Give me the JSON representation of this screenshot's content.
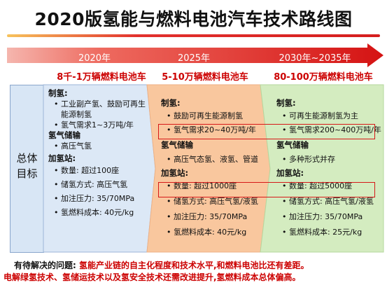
{
  "title": "2020版氢能与燃料电池汽车技术路线图",
  "timeline": {
    "years": [
      "2020年",
      "2025年",
      "2030年~2035年"
    ],
    "targets": [
      "8千-1万辆燃料电池车",
      "5-10万辆燃料电池车",
      "80-100万辆燃料电池车"
    ]
  },
  "left_label": [
    "总体",
    "目标"
  ],
  "columns": [
    {
      "lines": [
        {
          "t": "制氢:",
          "k": "h"
        },
        {
          "t": "• 工业副产氢、鼓励可再生",
          "k": "b"
        },
        {
          "t": "能源制氢",
          "k": "ind"
        },
        {
          "t": "• 氢气需求1~3万吨/年",
          "k": "b"
        },
        {
          "t": "氢气储输",
          "k": "h"
        },
        {
          "t": "• 高压气氢",
          "k": "b"
        },
        {
          "t": "加氢站:",
          "k": "h"
        },
        {
          "t": "• 数量: 超过100座",
          "k": "b"
        },
        {
          "t": "• 储氢方式: 高压气氢",
          "k": "b"
        },
        {
          "t": "• 加注压力: 35/70MPa",
          "k": "b"
        },
        {
          "t": "• 氢燃料成本: 40元/kg",
          "k": "b"
        }
      ]
    },
    {
      "lines": [
        {
          "t": "制氢:",
          "k": "h"
        },
        {
          "t": "• 鼓励可再生能源制氢",
          "k": "b"
        },
        {
          "t": "• 氢气需求20~40万吨/年",
          "k": "b"
        },
        {
          "t": "氢气储输",
          "k": "h"
        },
        {
          "t": "• 高压气态氢、液氢、管道",
          "k": "b"
        },
        {
          "t": "加氢站:",
          "k": "h"
        },
        {
          "t": "• 数量: 超过1000座",
          "k": "b"
        },
        {
          "t": "• 储氢方式: 高压气氢/液氢",
          "k": "b"
        },
        {
          "t": "• 加注压力: 35/70MPa",
          "k": "b"
        },
        {
          "t": "• 氢燃料成本: 40元/kg",
          "k": "b"
        }
      ]
    },
    {
      "lines": [
        {
          "t": "制氢:",
          "k": "h"
        },
        {
          "t": "• 可再生能源制氢为主",
          "k": "b"
        },
        {
          "t": "• 氢气需求200~400万吨/年",
          "k": "b"
        },
        {
          "t": "氢气储输",
          "k": "h"
        },
        {
          "t": "• 多种形式并存",
          "k": "b"
        },
        {
          "t": "加氢站:",
          "k": "h"
        },
        {
          "t": "• 数量: 超过5000座",
          "k": "b"
        },
        {
          "t": "• 储氢方式: 高压气氢/液氢",
          "k": "b"
        },
        {
          "t": "• 加注压力: 35/70MPa",
          "k": "b"
        },
        {
          "t": "• 氢燃料成本: 25元/kg",
          "k": "b"
        }
      ]
    }
  ],
  "problem": {
    "label": "有待解决的问题:",
    "line1": "氢能产业链的自主化程度和技术水平,和燃料电池比还有差距。",
    "line2": "电解绿氢技术、氢储运技术以及氢安全技术还需改进提升,氢燃料成本总体偏高。"
  },
  "colors": {
    "arrow_start": "#f3a7a0",
    "arrow_end": "#d81616",
    "col1_bg": "#dce8f6",
    "col2_bg": "#f9c79e",
    "col3_bg": "#d4ecc0",
    "highlight": "#d61818",
    "accent_red": "#cc0000"
  }
}
